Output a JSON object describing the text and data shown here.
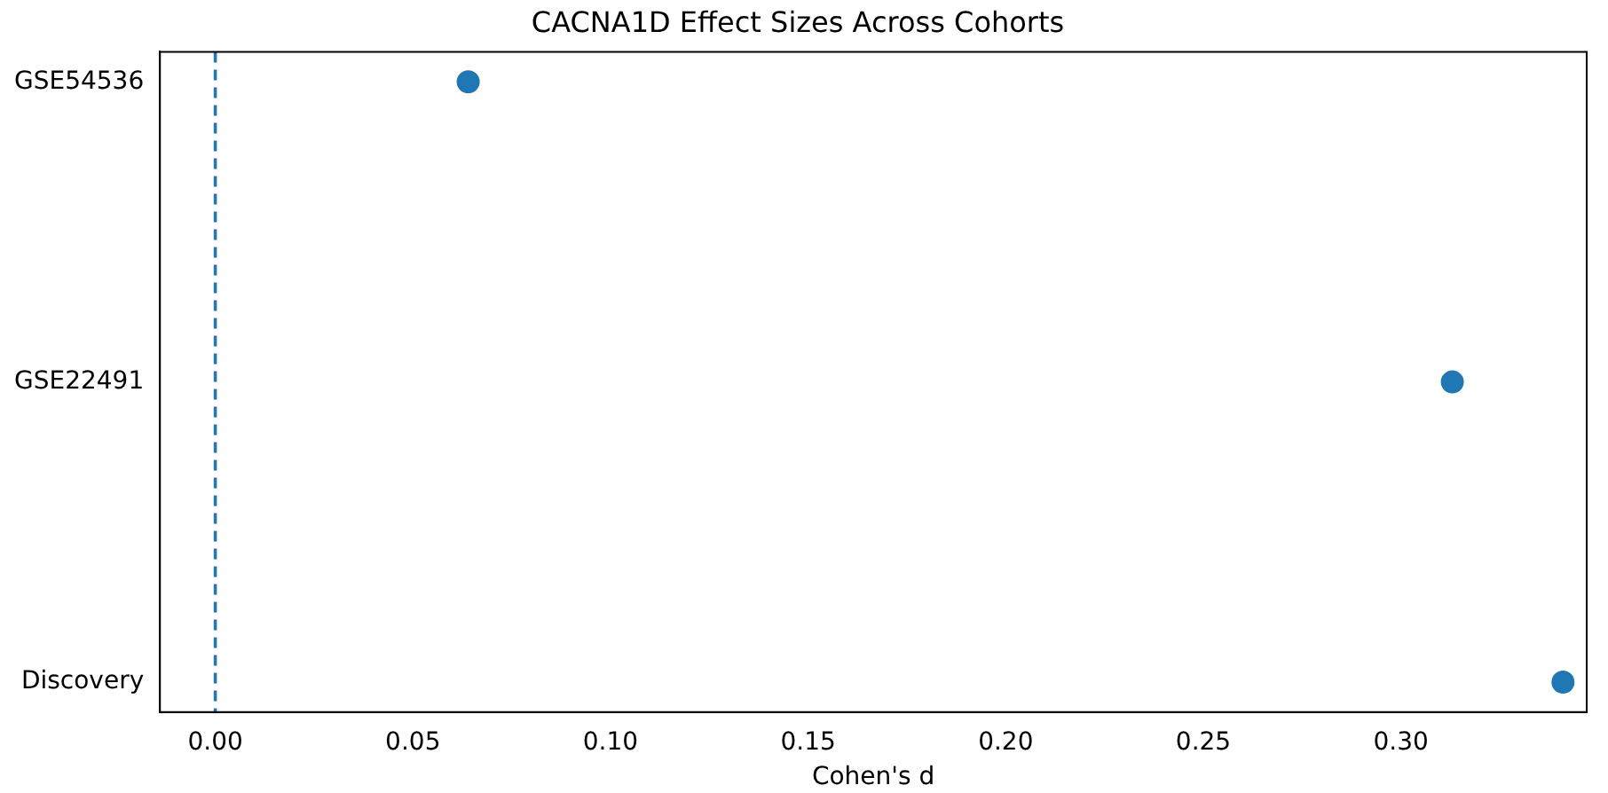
{
  "chart_data": {
    "type": "scatter",
    "title": "CACNA1D Effect Sizes Across Cohorts",
    "xlabel": "Cohen's d",
    "orientation": "horizontal",
    "categories": [
      "GSE54536",
      "GSE22491",
      "Discovery"
    ],
    "values": [
      0.064,
      0.313,
      0.341
    ],
    "color": "#1f77b4",
    "marker": "circle",
    "xlim": [
      -0.014,
      0.347
    ],
    "xticks": [
      {
        "value": 0,
        "label": "0.00"
      },
      {
        "value": 0.05,
        "label": "0.05"
      },
      {
        "value": 0.1,
        "label": "0.10"
      },
      {
        "value": 0.15,
        "label": "0.15"
      },
      {
        "value": 0.2,
        "label": "0.20"
      },
      {
        "value": 0.25,
        "label": "0.25"
      },
      {
        "value": 0.3,
        "label": "0.30"
      }
    ],
    "ref_lines": [
      {
        "axis": "x",
        "value": 0,
        "color": "#1f77b4",
        "line_style": "dashed"
      }
    ],
    "grid": false,
    "legend": false
  }
}
